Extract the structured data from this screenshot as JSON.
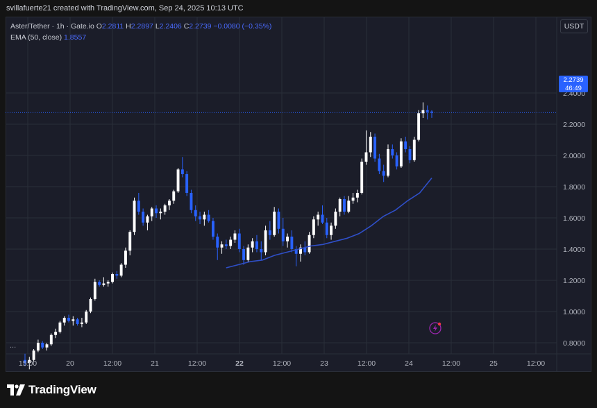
{
  "header": {
    "attribution": "svillafuerte21 created with TradingView.com, Sep 24, 2025 10:13 UTC"
  },
  "legend": {
    "symbol": "Aster/Tether · 1h · Gate.io",
    "open_label": "O",
    "open": "2.2811",
    "high_label": "H",
    "high": "2.2897",
    "low_label": "L",
    "low": "2.2406",
    "close_label": "C",
    "close": "2.2739",
    "change": "−0.0080 (−0.35%)",
    "ema_label": "EMA (50, close)",
    "ema_value": "1.8557"
  },
  "unit_button": "USDT",
  "price_tag": {
    "price": "2.2739",
    "countdown": "46:49"
  },
  "more_indicator": "...",
  "branding": {
    "logo_text": "TradingView"
  },
  "colors": {
    "background": "#1b1d29",
    "up_candle": "#ffffff",
    "down_candle": "#2962ff",
    "ema_line": "#2f4fc8",
    "grid": "#2a2e39",
    "price_tag": "#2962ff"
  },
  "chart_data": {
    "type": "candlestick",
    "y_axis_ticks": [
      "2.4000",
      "2.2000",
      "2.0000",
      "1.8000",
      "1.6000",
      "1.4000",
      "1.2000",
      "1.0000",
      "0.8000"
    ],
    "y_tick_values": [
      2.4,
      2.2,
      2.0,
      1.8,
      1.6,
      1.4,
      1.2,
      1.0,
      0.8
    ],
    "x_axis_labels": [
      "15:00",
      "20",
      "12:00",
      "21",
      "12:00",
      "22",
      "12:00",
      "23",
      "12:00",
      "24",
      "12:00",
      "25",
      "12:00"
    ],
    "x_axis_bold": [
      false,
      false,
      false,
      false,
      false,
      true,
      false,
      false,
      false,
      false,
      false,
      false,
      false
    ],
    "last_price": 2.2739,
    "series": [
      {
        "name": "EMA (50, close)",
        "type": "line",
        "approx_points": [
          [
            1.28
          ],
          [
            1.3
          ],
          [
            1.32
          ],
          [
            1.33
          ],
          [
            1.36
          ],
          [
            1.38
          ],
          [
            1.4
          ],
          [
            1.42
          ],
          [
            1.43
          ],
          [
            1.45
          ],
          [
            1.47
          ],
          [
            1.5
          ],
          [
            1.55
          ],
          [
            1.61
          ],
          [
            1.65
          ],
          [
            1.71
          ],
          [
            1.76
          ],
          [
            1.8557
          ]
        ]
      }
    ],
    "candles": [
      [
        0.69,
        0.73,
        0.65,
        0.67
      ],
      [
        0.67,
        0.71,
        0.63,
        0.69
      ],
      [
        0.69,
        0.76,
        0.68,
        0.75
      ],
      [
        0.75,
        0.82,
        0.74,
        0.8
      ],
      [
        0.8,
        0.81,
        0.76,
        0.77
      ],
      [
        0.77,
        0.8,
        0.75,
        0.79
      ],
      [
        0.79,
        0.86,
        0.78,
        0.85
      ],
      [
        0.85,
        0.89,
        0.83,
        0.87
      ],
      [
        0.87,
        0.94,
        0.86,
        0.93
      ],
      [
        0.93,
        0.97,
        0.91,
        0.96
      ],
      [
        0.96,
        0.98,
        0.93,
        0.94
      ],
      [
        0.94,
        0.97,
        0.91,
        0.95
      ],
      [
        0.95,
        0.96,
        0.91,
        0.92
      ],
      [
        0.92,
        0.96,
        0.9,
        0.93
      ],
      [
        0.93,
        1.01,
        0.92,
        1.0
      ],
      [
        1.0,
        1.09,
        0.99,
        1.08
      ],
      [
        1.08,
        1.21,
        1.07,
        1.19
      ],
      [
        1.19,
        1.2,
        1.16,
        1.17
      ],
      [
        1.17,
        1.22,
        1.16,
        1.18
      ],
      [
        1.18,
        1.2,
        1.16,
        1.19
      ],
      [
        1.19,
        1.25,
        1.18,
        1.24
      ],
      [
        1.24,
        1.26,
        1.21,
        1.23
      ],
      [
        1.23,
        1.31,
        1.22,
        1.3
      ],
      [
        1.3,
        1.41,
        1.28,
        1.39
      ],
      [
        1.39,
        1.52,
        1.36,
        1.51
      ],
      [
        1.51,
        1.73,
        1.49,
        1.71
      ],
      [
        1.71,
        1.76,
        1.62,
        1.64
      ],
      [
        1.64,
        1.66,
        1.55,
        1.57
      ],
      [
        1.57,
        1.62,
        1.52,
        1.61
      ],
      [
        1.61,
        1.67,
        1.58,
        1.66
      ],
      [
        1.66,
        1.68,
        1.6,
        1.63
      ],
      [
        1.63,
        1.66,
        1.59,
        1.64
      ],
      [
        1.64,
        1.69,
        1.62,
        1.68
      ],
      [
        1.68,
        1.72,
        1.65,
        1.71
      ],
      [
        1.71,
        1.78,
        1.69,
        1.77
      ],
      [
        1.77,
        1.92,
        1.76,
        1.91
      ],
      [
        1.91,
        1.99,
        1.86,
        1.88
      ],
      [
        1.88,
        1.9,
        1.74,
        1.76
      ],
      [
        1.76,
        1.78,
        1.63,
        1.65
      ],
      [
        1.65,
        1.68,
        1.58,
        1.61
      ],
      [
        1.61,
        1.64,
        1.56,
        1.59
      ],
      [
        1.59,
        1.64,
        1.55,
        1.62
      ],
      [
        1.62,
        1.65,
        1.57,
        1.58
      ],
      [
        1.58,
        1.6,
        1.46,
        1.48
      ],
      [
        1.48,
        1.5,
        1.33,
        1.41
      ],
      [
        1.41,
        1.45,
        1.37,
        1.43
      ],
      [
        1.43,
        1.46,
        1.4,
        1.42
      ],
      [
        1.42,
        1.48,
        1.4,
        1.46
      ],
      [
        1.46,
        1.52,
        1.44,
        1.5
      ],
      [
        1.5,
        1.53,
        1.38,
        1.4
      ],
      [
        1.4,
        1.42,
        1.3,
        1.33
      ],
      [
        1.33,
        1.43,
        1.32,
        1.41
      ],
      [
        1.41,
        1.47,
        1.38,
        1.45
      ],
      [
        1.45,
        1.49,
        1.38,
        1.4
      ],
      [
        1.4,
        1.45,
        1.33,
        1.38
      ],
      [
        1.38,
        1.55,
        1.36,
        1.52
      ],
      [
        1.52,
        1.58,
        1.46,
        1.49
      ],
      [
        1.49,
        1.67,
        1.48,
        1.64
      ],
      [
        1.64,
        1.66,
        1.5,
        1.53
      ],
      [
        1.53,
        1.6,
        1.42,
        1.45
      ],
      [
        1.45,
        1.5,
        1.41,
        1.48
      ],
      [
        1.48,
        1.52,
        1.38,
        1.4
      ],
      [
        1.4,
        1.42,
        1.29,
        1.37
      ],
      [
        1.37,
        1.43,
        1.32,
        1.41
      ],
      [
        1.41,
        1.45,
        1.36,
        1.38
      ],
      [
        1.38,
        1.51,
        1.37,
        1.49
      ],
      [
        1.49,
        1.61,
        1.47,
        1.59
      ],
      [
        1.59,
        1.64,
        1.55,
        1.62
      ],
      [
        1.62,
        1.68,
        1.56,
        1.57
      ],
      [
        1.57,
        1.6,
        1.47,
        1.49
      ],
      [
        1.49,
        1.57,
        1.46,
        1.55
      ],
      [
        1.55,
        1.66,
        1.53,
        1.64
      ],
      [
        1.64,
        1.73,
        1.61,
        1.72
      ],
      [
        1.72,
        1.74,
        1.62,
        1.64
      ],
      [
        1.64,
        1.74,
        1.63,
        1.71
      ],
      [
        1.71,
        1.76,
        1.69,
        1.73
      ],
      [
        1.73,
        1.78,
        1.7,
        1.76
      ],
      [
        1.76,
        1.98,
        1.75,
        1.96
      ],
      [
        1.96,
        2.16,
        1.94,
        2.02
      ],
      [
        2.02,
        2.15,
        1.99,
        2.12
      ],
      [
        2.12,
        2.14,
        1.96,
        1.98
      ],
      [
        1.98,
        2.01,
        1.88,
        1.9
      ],
      [
        1.9,
        1.94,
        1.83,
        1.87
      ],
      [
        1.87,
        2.07,
        1.86,
        2.04
      ],
      [
        2.04,
        2.07,
        1.98,
        2.0
      ],
      [
        2.0,
        2.02,
        1.91,
        1.93
      ],
      [
        1.93,
        2.11,
        1.92,
        2.09
      ],
      [
        2.09,
        2.12,
        2.02,
        2.04
      ],
      [
        2.04,
        2.06,
        1.95,
        1.97
      ],
      [
        1.97,
        2.12,
        1.96,
        2.1
      ],
      [
        2.1,
        2.29,
        2.09,
        2.27
      ],
      [
        2.27,
        2.34,
        2.24,
        2.29
      ],
      [
        2.29,
        2.32,
        2.23,
        2.28
      ],
      [
        2.2811,
        2.2897,
        2.2406,
        2.2739
      ]
    ]
  }
}
